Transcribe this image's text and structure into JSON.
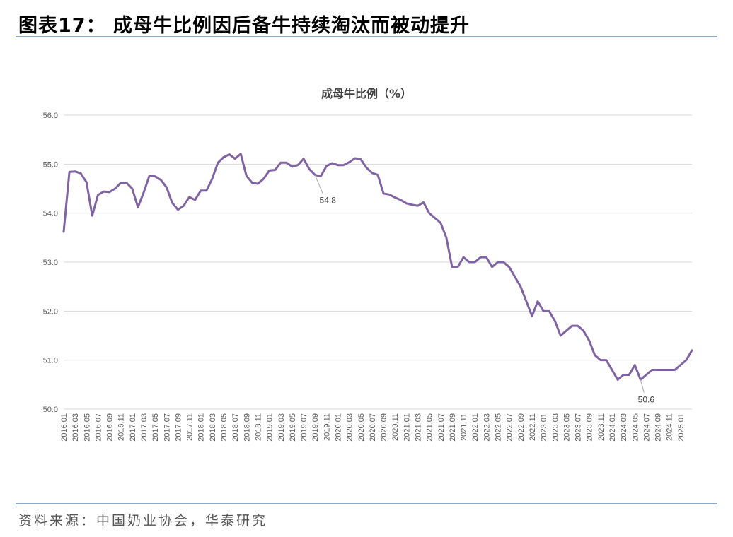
{
  "header": {
    "title": "图表17：  成母牛比例因后备牛持续淘汰而被动提升"
  },
  "footer": {
    "source": "资料来源：中国奶业协会，华泰研究"
  },
  "colors": {
    "line": "#8064A2",
    "grid": "#D9D9D9",
    "rule": "#8EA9C8"
  },
  "chart_data": {
    "type": "line",
    "title": "成母牛比例（%）",
    "xlabel": "",
    "ylabel": "",
    "ylim": [
      50.0,
      56.0
    ],
    "yticks": [
      "50.0",
      "51.0",
      "52.0",
      "53.0",
      "54.0",
      "55.0",
      "56.0"
    ],
    "grid": true,
    "x_tick_labels": [
      "2016.01",
      "2016.03",
      "2016.05",
      "2016.07",
      "2016.09",
      "2016.11",
      "2017.01",
      "2017.03",
      "2017.05",
      "2017.07",
      "2017.09",
      "2017.11",
      "2018.01",
      "2018.03",
      "2018.05",
      "2018.07",
      "2018.09",
      "2018.11",
      "2019.01",
      "2019.03",
      "2019.05",
      "2019.07",
      "2019.09",
      "2019.11",
      "2020.01",
      "2020.03",
      "2020.05",
      "2020.07",
      "2020.09",
      "2020.11",
      "2021.01",
      "2021.03",
      "2021.05",
      "2021.07",
      "2021.09",
      "2021.11",
      "2022.01",
      "2022.03",
      "2022.05",
      "2022.07",
      "2022.09",
      "2022.11",
      "2023.01",
      "2023.03",
      "2023.05",
      "2023.07",
      "2023.09",
      "2023.11",
      "2024.01",
      "2024.03",
      "2024.05",
      "2024.07",
      "2024.09",
      "2024.11",
      "2025.01"
    ],
    "series": [
      {
        "values": [
          53.62,
          54.84,
          54.85,
          54.81,
          54.63,
          53.95,
          54.37,
          54.44,
          54.43,
          54.5,
          54.62,
          54.62,
          54.5,
          54.12,
          54.42,
          54.76,
          54.75,
          54.68,
          54.53,
          54.21,
          54.07,
          54.15,
          54.33,
          54.27,
          54.46,
          54.46,
          54.7,
          55.03,
          55.14,
          55.2,
          55.11,
          55.21,
          54.76,
          54.62,
          54.6,
          54.7,
          54.87,
          54.88,
          55.03,
          55.03,
          54.95,
          54.98,
          55.11,
          54.9,
          54.78,
          54.75,
          54.96,
          55.02,
          54.98,
          54.98,
          55.04,
          55.12,
          55.1,
          54.93,
          54.82,
          54.78,
          54.4,
          54.38,
          54.32,
          54.27,
          54.2,
          54.17,
          54.15,
          54.22,
          54.0,
          53.9,
          53.8,
          53.5,
          52.9,
          52.9,
          53.1,
          53.0,
          53.0,
          53.1,
          53.1,
          52.9,
          53.0,
          53.0,
          52.9,
          52.7,
          52.5,
          52.2,
          51.9,
          52.2,
          52.0,
          52.0,
          51.8,
          51.5,
          51.6,
          51.7,
          51.7,
          51.6,
          51.4,
          51.1,
          51.0,
          51.0,
          50.8,
          50.6,
          50.7,
          50.7,
          50.9,
          50.6,
          50.7,
          50.8,
          50.8,
          50.8,
          50.8,
          50.8,
          50.9,
          51.0,
          51.2
        ]
      }
    ],
    "annotations": [
      {
        "text": "54.8",
        "x": "2019.09",
        "value": 54.8
      },
      {
        "text": "50.6",
        "x": "2024.06",
        "value": 50.6
      }
    ]
  }
}
